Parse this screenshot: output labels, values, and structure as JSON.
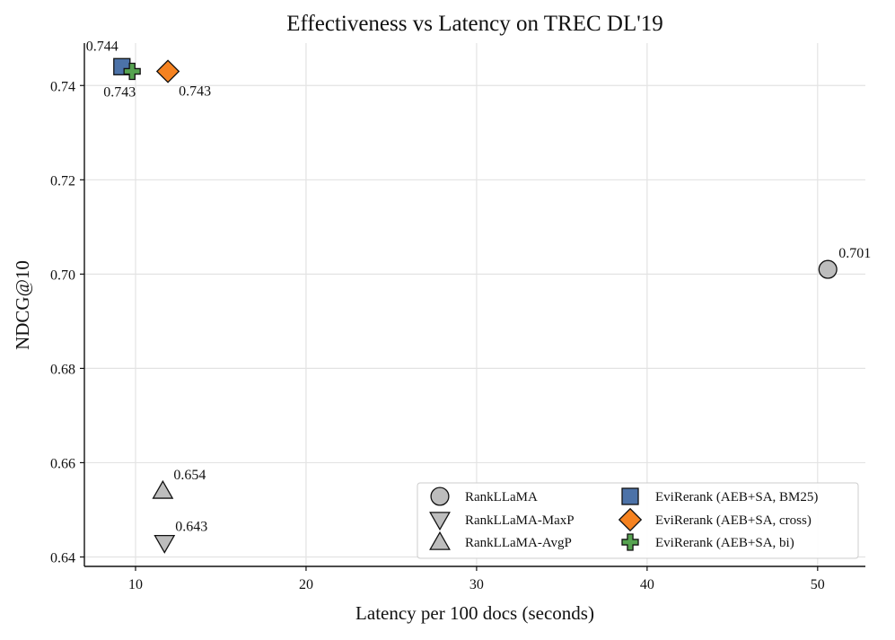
{
  "chart_data": {
    "type": "scatter",
    "title": "Effectiveness vs Latency on TREC DL'19",
    "xlabel": "Latency per 100 docs (seconds)",
    "ylabel": "NDCG@10",
    "xlim": [
      7,
      52.8
    ],
    "ylim": [
      0.638,
      0.749
    ],
    "xticks": [
      10,
      20,
      30,
      40,
      50
    ],
    "yticks": [
      0.64,
      0.66,
      0.68,
      0.7,
      0.72,
      0.74
    ],
    "ytick_labels": [
      "0.64",
      "0.66",
      "0.68",
      "0.70",
      "0.72",
      "0.74"
    ],
    "grid": true,
    "legend_position": "bottom-right",
    "series": [
      {
        "name": "RankLLaMA",
        "marker": "circle",
        "color": "#bdbdbd",
        "points": [
          {
            "x": 50.6,
            "y": 0.701,
            "label": "0.701",
            "label_pos": "upper-right"
          }
        ]
      },
      {
        "name": "RankLLaMA-MaxP",
        "marker": "triangle-down",
        "color": "#bdbdbd",
        "points": [
          {
            "x": 11.7,
            "y": 0.643,
            "label": "0.643",
            "label_pos": "upper-right"
          }
        ]
      },
      {
        "name": "RankLLaMA-AvgP",
        "marker": "triangle-up",
        "color": "#bdbdbd",
        "points": [
          {
            "x": 11.6,
            "y": 0.654,
            "label": "0.654",
            "label_pos": "upper-right"
          }
        ]
      },
      {
        "name": "EviRerank (AEB+SA, BM25)",
        "marker": "square",
        "color": "#4c72a8",
        "points": [
          {
            "x": 9.2,
            "y": 0.744,
            "label": "0.744",
            "label_pos": "upper-left"
          }
        ]
      },
      {
        "name": "EviRerank (AEB+SA, cross)",
        "marker": "diamond",
        "color": "#f58220",
        "points": [
          {
            "x": 11.9,
            "y": 0.743,
            "label": "0.743",
            "label_pos": "lower-right"
          }
        ]
      },
      {
        "name": "EviRerank (AEB+SA, bi)",
        "marker": "plus",
        "color": "#56a350",
        "points": [
          {
            "x": 9.8,
            "y": 0.743,
            "label": "0.743",
            "label_pos": "lower-left"
          }
        ]
      }
    ],
    "legend_columns": [
      [
        "RankLLaMA",
        "RankLLaMA-MaxP",
        "RankLLaMA-AvgP"
      ],
      [
        "EviRerank (AEB+SA, BM25)",
        "EviRerank (AEB+SA, cross)",
        "EviRerank (AEB+SA, bi)"
      ]
    ]
  }
}
